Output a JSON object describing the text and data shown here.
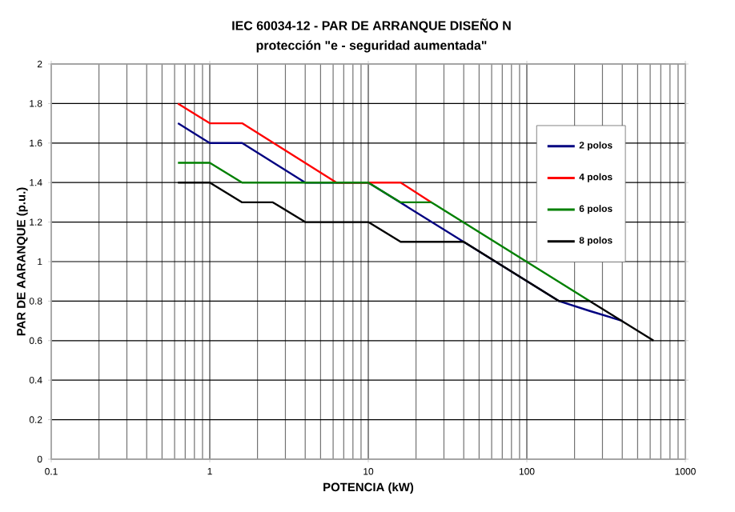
{
  "chart_data": {
    "type": "line",
    "title": "IEC 60034-12 - PAR DE ARRANQUE DISEÑO N",
    "subtitle": "protección \"e - seguridad aumentada\"",
    "xlabel": "POTENCIA (kW)",
    "ylabel": "PAR DE AARANQUE (p.u.)",
    "log": "x",
    "grid": true,
    "legend": "right",
    "xlim": [
      0.1,
      1000
    ],
    "xticks": [
      0.1,
      1,
      10,
      100,
      1000
    ],
    "ylim": [
      0,
      2
    ],
    "yticks": [
      0,
      0.2,
      0.4,
      0.6,
      0.8,
      1,
      1.2,
      1.4,
      1.6,
      1.8,
      2
    ],
    "series": [
      {
        "name": "2 polos",
        "color": "#000080",
        "x": [
          0.63,
          1,
          1.6,
          4,
          10,
          40,
          160,
          250,
          400
        ],
        "values": [
          1.7,
          1.6,
          1.6,
          1.4,
          1.4,
          1.1,
          0.8,
          0.75,
          0.7
        ]
      },
      {
        "name": "4 polos",
        "color": "#ff0000",
        "x": [
          0.63,
          1,
          1.6,
          6.3,
          16,
          25
        ],
        "values": [
          1.8,
          1.7,
          1.7,
          1.4,
          1.4,
          1.3
        ]
      },
      {
        "name": "6 polos",
        "color": "#008000",
        "x": [
          0.63,
          1,
          1.6,
          10,
          16,
          25,
          250
        ],
        "values": [
          1.5,
          1.5,
          1.4,
          1.4,
          1.3,
          1.3,
          0.8
        ]
      },
      {
        "name": "8 polos",
        "color": "#000000",
        "x": [
          0.63,
          1,
          1.6,
          2.5,
          4,
          10,
          16,
          40,
          160,
          250,
          630
        ],
        "values": [
          1.4,
          1.4,
          1.3,
          1.3,
          1.2,
          1.2,
          1.1,
          1.1,
          0.8,
          0.8,
          0.6
        ]
      }
    ]
  }
}
